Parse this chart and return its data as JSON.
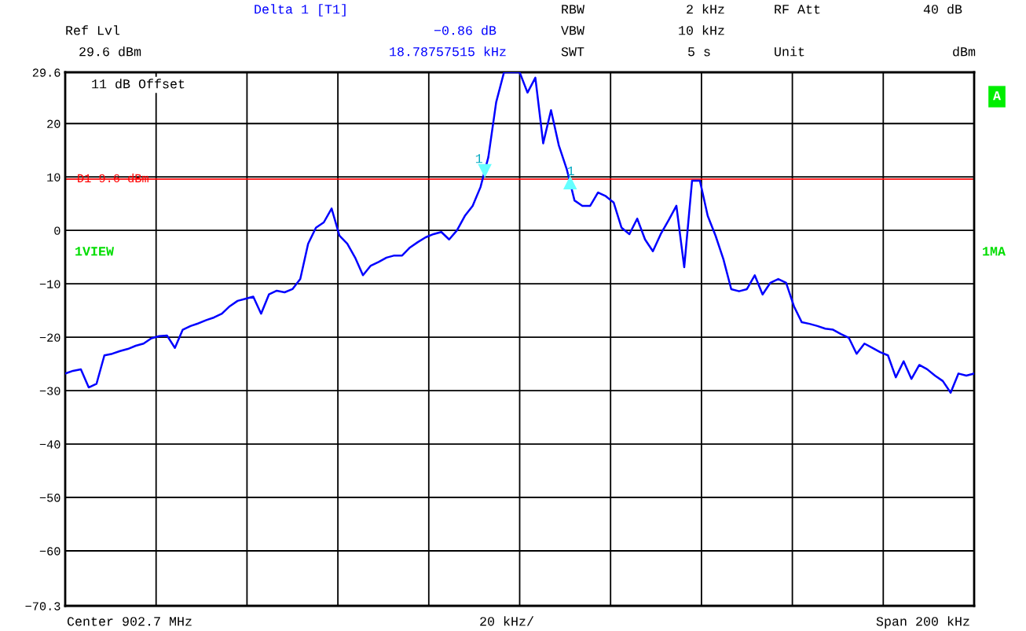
{
  "chart_data": {
    "type": "line",
    "annotations": [
      "Delta 1 [T1]",
      "Ref Lvl",
      "−0.86 dB",
      "29.6 dBm",
      "18.78757515 kHz",
      "RBW",
      "2 kHz",
      "RF Att",
      "40 dB",
      "VBW",
      "10 kHz",
      "SWT",
      "5 s",
      "Unit",
      "dBm",
      "11 dB Offset",
      "1VIEW",
      "A",
      "1MA",
      "Center 902.7 MHz",
      "20 kHz/",
      "Span 200 kHz",
      {
        "text": "1",
        "y": 11.2
      },
      {
        "text": "1",
        "y": 8.9
      }
    ],
    "categories": [
      null,
      null,
      null,
      null,
      null,
      null,
      null,
      null,
      null,
      null,
      null,
      null,
      null,
      null,
      null,
      null,
      null,
      null,
      null,
      null,
      null,
      null,
      null,
      null,
      null,
      null,
      null,
      null,
      null,
      null,
      null,
      null,
      null,
      null,
      null,
      null,
      null,
      null,
      null,
      null,
      null,
      null,
      null,
      null,
      null,
      null,
      null,
      null,
      null,
      null,
      null,
      null,
      null,
      null,
      null,
      null,
      null,
      null,
      null,
      null,
      null,
      null,
      null,
      null,
      null,
      null,
      null,
      null,
      null,
      null,
      null,
      null,
      null,
      null,
      null,
      null,
      null,
      null,
      null,
      null,
      null,
      null,
      null,
      null,
      null,
      null,
      null,
      null,
      null,
      null,
      null,
      null,
      null,
      null,
      null,
      null,
      null,
      null,
      null,
      null,
      null,
      null,
      null,
      null,
      null,
      null,
      null,
      null,
      null,
      null,
      null,
      null,
      null,
      null,
      null,
      null,
      null
    ],
    "series": [
      {
        "color": "#0000ff",
        "values": [
          -26.8,
          -26.3,
          -26,
          -29.4,
          -28.7,
          -23.4,
          -23.1,
          -22.6,
          -22.2,
          -21.6,
          -21.2,
          -20.2,
          -19.8,
          -19.7,
          -22,
          -18.6,
          -17.9,
          -17.4,
          -16.8,
          -16.3,
          -15.6,
          -14.2,
          -13.2,
          -12.8,
          -12.4,
          -15.6,
          -12,
          -11.3,
          -11.6,
          -11,
          -9.1,
          -2.5,
          0.5,
          1.5,
          4.1,
          -1,
          -2.5,
          -5.1,
          -8.4,
          -6.6,
          -5.9,
          -5.1,
          -4.7,
          -4.7,
          -3.2,
          -2.2,
          -1.3,
          -0.7,
          -0.3,
          -1.7,
          0,
          2.7,
          4.6,
          8.1,
          13.7,
          24,
          29.6,
          29.6,
          29.6,
          25.8,
          28.6,
          16.3,
          22.5,
          15.9,
          11.5,
          5.6,
          4.6,
          4.6,
          7.1,
          6.4,
          5.2,
          0.5,
          -0.7,
          2.2,
          -1.7,
          -3.9,
          -0.7,
          1.9,
          4.6,
          -6.9,
          9.3,
          9.3,
          2.7,
          -1,
          -5.4,
          -11,
          -11.4,
          -11,
          -8.4,
          -12,
          -9.8,
          -9.1,
          -9.8,
          -14.2,
          -17.2,
          -17.5,
          -17.9,
          -18.4,
          -18.6,
          -19.4,
          -20.1,
          -23.1,
          -21.2,
          -22,
          -22.8,
          -23.4,
          -27.5,
          -24.5,
          -27.8,
          -25.2,
          -26,
          -27.2,
          -28.2,
          -30.4,
          -26.8,
          -27.2,
          -26.8
        ]
      }
    ],
    "ylim": [
      -70.3,
      29.6
    ],
    "yticks": [
      29.6,
      20,
      10,
      0,
      -10,
      -20,
      -30,
      -40,
      -50,
      -60,
      -70.3
    ],
    "ref_lines": [
      {
        "axis": "y",
        "value": 9.6,
        "label": "D1 9.6 dBm",
        "color": "#ff0000"
      }
    ],
    "grid": true,
    "tick_labels": "y"
  }
}
